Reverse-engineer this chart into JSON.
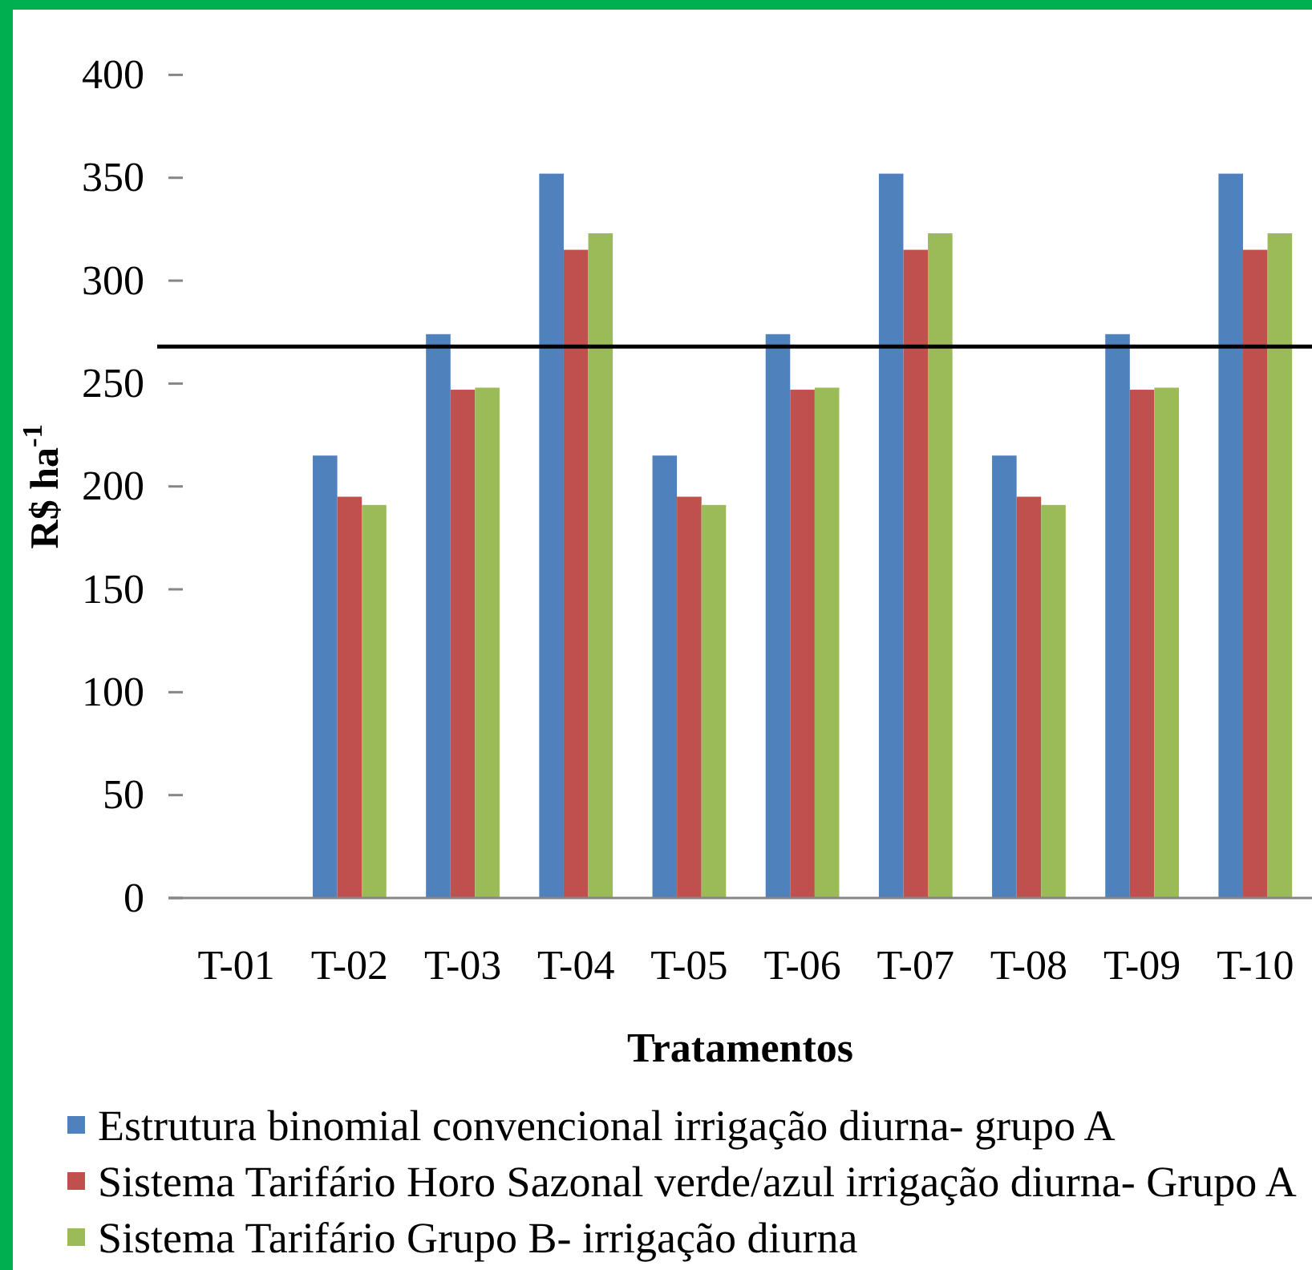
{
  "chart_data": {
    "type": "bar",
    "xlabel": "Tratamentos",
    "ylabel": "R$ ha$^{-1}$",
    "categories": [
      "T-01",
      "T-02",
      "T-03",
      "T-04",
      "T-05",
      "T-06",
      "T-07",
      "T-08",
      "T-09",
      "T-10"
    ],
    "series": [
      {
        "name": "Estrutura binomial convencional irrigação diurna- grupo A",
        "color": "#4f81bd",
        "values": [
          0,
          215,
          274,
          352,
          215,
          274,
          352,
          215,
          274,
          352
        ]
      },
      {
        "name": "Sistema Tarifário Horo Sazonal verde/azul irrigação diurna- Grupo A",
        "color": "#c0504d",
        "values": [
          0,
          195,
          247,
          315,
          195,
          247,
          315,
          195,
          247,
          315
        ]
      },
      {
        "name": "Sistema Tarifário Grupo B- irrigação diurna",
        "color": "#9bbb59",
        "values": [
          0,
          191,
          248,
          323,
          191,
          248,
          323,
          191,
          248,
          323
        ]
      }
    ],
    "ylim": [
      0,
      400
    ],
    "yticks": [
      0,
      50,
      100,
      150,
      200,
      250,
      300,
      350,
      400
    ],
    "ref_lines": [
      {
        "axis": "y",
        "value": 268,
        "color": "#000000"
      }
    ],
    "legend": "bottom"
  }
}
